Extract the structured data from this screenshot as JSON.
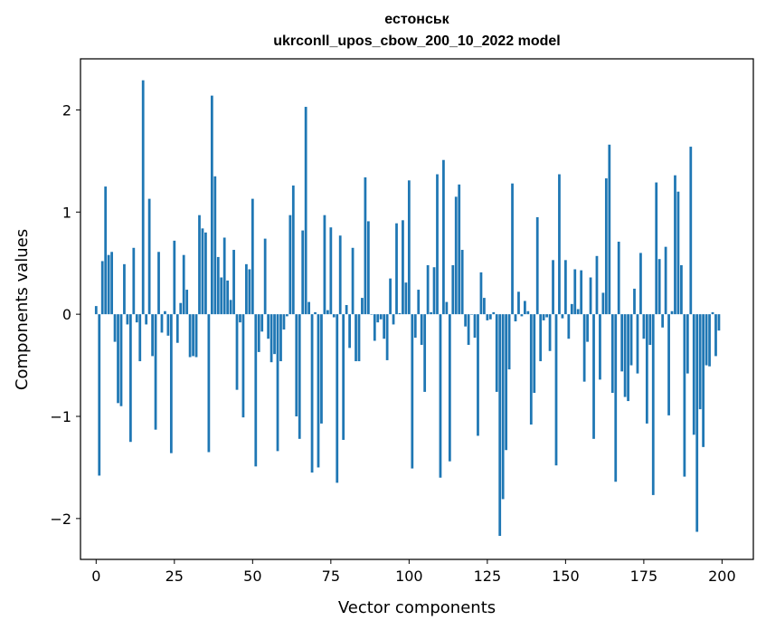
{
  "chart_data": {
    "type": "bar",
    "title": "естонськ",
    "subtitle": "ukrconll_upos_cbow_200_10_2022 model",
    "xlabel": "Vector components",
    "ylabel": "Components values",
    "xlim": [
      -5,
      210
    ],
    "ylim": [
      -2.4,
      2.5
    ],
    "xticks": [
      0,
      25,
      50,
      75,
      100,
      125,
      150,
      175,
      200
    ],
    "yticks": [
      -2,
      -1,
      0,
      1,
      2
    ],
    "ytick_labels": [
      "−2",
      "−1",
      "0",
      "1",
      "2"
    ],
    "grid": false,
    "bar_color": "#1f77b4",
    "x": [
      0,
      1,
      2,
      3,
      4,
      5,
      6,
      7,
      8,
      9,
      10,
      11,
      12,
      13,
      14,
      15,
      16,
      17,
      18,
      19,
      20,
      21,
      22,
      23,
      24,
      25,
      26,
      27,
      28,
      29,
      30,
      31,
      32,
      33,
      34,
      35,
      36,
      37,
      38,
      39,
      40,
      41,
      42,
      43,
      44,
      45,
      46,
      47,
      48,
      49,
      50,
      51,
      52,
      53,
      54,
      55,
      56,
      57,
      58,
      59,
      60,
      61,
      62,
      63,
      64,
      65,
      66,
      67,
      68,
      69,
      70,
      71,
      72,
      73,
      74,
      75,
      76,
      77,
      78,
      79,
      80,
      81,
      82,
      83,
      84,
      85,
      86,
      87,
      88,
      89,
      90,
      91,
      92,
      93,
      94,
      95,
      96,
      97,
      98,
      99,
      100,
      101,
      102,
      103,
      104,
      105,
      106,
      107,
      108,
      109,
      110,
      111,
      112,
      113,
      114,
      115,
      116,
      117,
      118,
      119,
      120,
      121,
      122,
      123,
      124,
      125,
      126,
      127,
      128,
      129,
      130,
      131,
      132,
      133,
      134,
      135,
      136,
      137,
      138,
      139,
      140,
      141,
      142,
      143,
      144,
      145,
      146,
      147,
      148,
      149,
      150,
      151,
      152,
      153,
      154,
      155,
      156,
      157,
      158,
      159,
      160,
      161,
      162,
      163,
      164,
      165,
      166,
      167,
      168,
      169,
      170,
      171,
      172,
      173,
      174,
      175,
      176,
      177,
      178,
      179,
      180,
      181,
      182,
      183,
      184,
      185,
      186,
      187,
      188,
      189,
      190,
      191,
      192,
      193,
      194,
      195,
      196,
      197,
      198,
      199
    ],
    "values": [
      0.08,
      -1.58,
      0.52,
      1.25,
      0.58,
      0.61,
      -0.27,
      -0.87,
      -0.9,
      0.49,
      -0.1,
      -1.25,
      0.65,
      -0.08,
      -0.46,
      2.29,
      -0.1,
      1.13,
      -0.41,
      -1.13,
      0.61,
      -0.18,
      0.03,
      -0.21,
      -1.36,
      0.72,
      -0.28,
      0.11,
      0.58,
      0.24,
      -0.42,
      -0.41,
      -0.42,
      0.97,
      0.84,
      0.8,
      -1.35,
      2.14,
      1.35,
      0.56,
      0.36,
      0.75,
      0.33,
      0.14,
      0.63,
      -0.74,
      -0.08,
      -1.01,
      0.49,
      0.44,
      1.13,
      -1.49,
      -0.37,
      -0.17,
      0.74,
      -0.24,
      -0.47,
      -0.39,
      -1.34,
      -0.46,
      -0.15,
      -0.02,
      0.97,
      1.26,
      -1.0,
      -1.22,
      0.82,
      2.03,
      0.12,
      -1.55,
      0.02,
      -1.5,
      -1.07,
      0.97,
      0.04,
      0.85,
      -0.03,
      -1.65,
      0.77,
      -1.23,
      0.09,
      -0.33,
      0.65,
      -0.46,
      -0.46,
      0.16,
      1.34,
      0.91,
      0.0,
      -0.26,
      -0.08,
      -0.05,
      -0.24,
      -0.45,
      0.35,
      -0.1,
      0.89,
      0.01,
      0.92,
      0.31,
      1.31,
      -1.51,
      -0.23,
      0.24,
      -0.3,
      -0.76,
      0.48,
      0.02,
      0.46,
      1.37,
      -1.6,
      1.51,
      0.12,
      -1.44,
      0.48,
      1.15,
      1.27,
      0.63,
      -0.12,
      -0.3,
      0.0,
      -0.23,
      -1.19,
      0.41,
      0.16,
      -0.06,
      -0.05,
      0.02,
      -0.76,
      -2.17,
      -1.81,
      -1.33,
      -0.54,
      1.28,
      -0.07,
      0.22,
      -0.02,
      0.13,
      0.03,
      -1.08,
      -0.77,
      0.95,
      -0.46,
      -0.06,
      -0.03,
      -0.36,
      0.53,
      -1.48,
      1.37,
      -0.04,
      0.53,
      -0.24,
      0.1,
      0.44,
      0.05,
      0.43,
      -0.66,
      -0.27,
      0.36,
      -1.22,
      0.57,
      -0.64,
      0.21,
      1.33,
      1.66,
      -0.77,
      -1.64,
      0.71,
      -0.56,
      -0.81,
      -0.85,
      -0.5,
      0.25,
      -0.58,
      0.6,
      -0.24,
      -1.07,
      -0.3,
      -1.77,
      1.29,
      0.54,
      -0.13,
      0.66,
      -0.99,
      0.03,
      1.36,
      1.2,
      0.48,
      -1.59,
      -0.58,
      1.64,
      -1.18,
      -2.13,
      -0.93,
      -1.3,
      -0.5,
      -0.51,
      0.02,
      -0.41,
      -0.16
    ]
  }
}
